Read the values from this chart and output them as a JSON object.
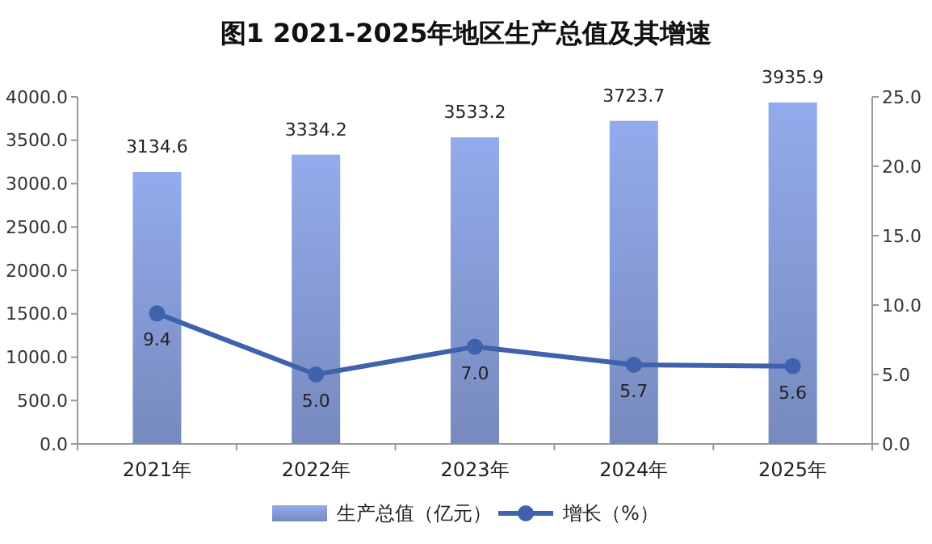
{
  "chart_data": {
    "type": "bar",
    "title": "图1  2021-2025年地区生产总值及其增速",
    "categories": [
      "2021年",
      "2022年",
      "2023年",
      "2024年",
      "2025年"
    ],
    "series": [
      {
        "name": "生产总值（亿元）",
        "color": "#8297d0",
        "values": [
          3134.6,
          3334.2,
          3533.2,
          3723.7,
          3935.9
        ],
        "value_labels": [
          "3134.6",
          "3334.2",
          "3533.2",
          "3723.7",
          "3935.9"
        ]
      },
      {
        "name": "增长（%）",
        "type": "line",
        "axis": "y2",
        "color": "#3f62ad",
        "values": [
          9.4,
          5.0,
          7.0,
          5.7,
          5.6
        ],
        "value_labels": [
          "9.4",
          "5.0",
          "7.0",
          "5.7",
          "5.6"
        ],
        "marker": "circle"
      }
    ],
    "ylim": [
      0,
      4000
    ],
    "yticks": [
      {
        "value": 0,
        "label": "0.0"
      },
      {
        "value": 500,
        "label": "500.0"
      },
      {
        "value": 1000,
        "label": "1000.0"
      },
      {
        "value": 1500,
        "label": "1500.0"
      },
      {
        "value": 2000,
        "label": "2000.0"
      },
      {
        "value": 2500,
        "label": "2500.0"
      },
      {
        "value": 3000,
        "label": "3000.0"
      },
      {
        "value": 3500,
        "label": "3500.0"
      },
      {
        "value": 4000,
        "label": "4000.0"
      }
    ],
    "y2lim": [
      0,
      25
    ],
    "y2ticks": [
      {
        "value": 0,
        "label": "0.0"
      },
      {
        "value": 5,
        "label": "5.0"
      },
      {
        "value": 10,
        "label": "10.0"
      },
      {
        "value": 15,
        "label": "15.0"
      },
      {
        "value": 20,
        "label": "20.0"
      },
      {
        "value": 25,
        "label": "25.0"
      }
    ],
    "legend": "bottom",
    "grid": false
  }
}
